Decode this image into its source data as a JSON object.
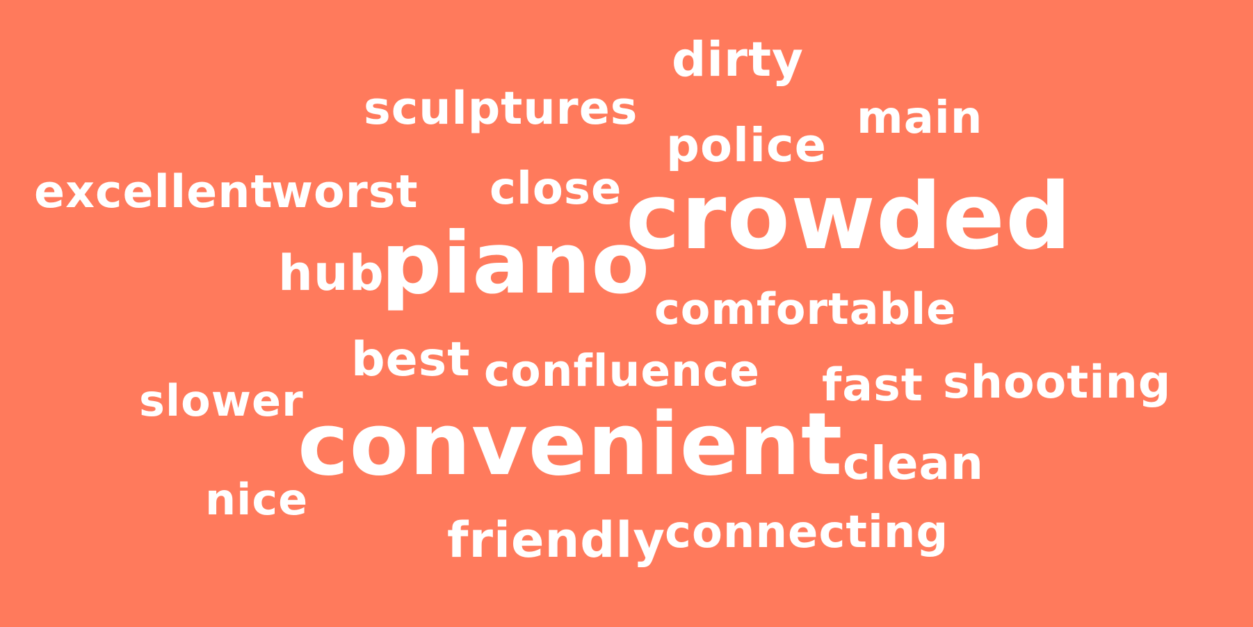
{
  "colors": {
    "background": "#ff7a5c",
    "text": "#ffffff"
  },
  "words": {
    "dirty": "dirty",
    "sculptures": "sculptures",
    "main": "main",
    "police": "police",
    "excellent": "excellent",
    "worst": "worst",
    "close": "close",
    "crowded": "crowded",
    "hub": "hub",
    "piano": "piano",
    "comfortable": "comfortable",
    "best": "best",
    "confluence": "confluence",
    "fast": "fast",
    "shooting": "shooting",
    "slower": "slower",
    "convenient": "convenient",
    "clean": "clean",
    "nice": "nice",
    "friendly": "friendly",
    "connecting": "connecting"
  }
}
